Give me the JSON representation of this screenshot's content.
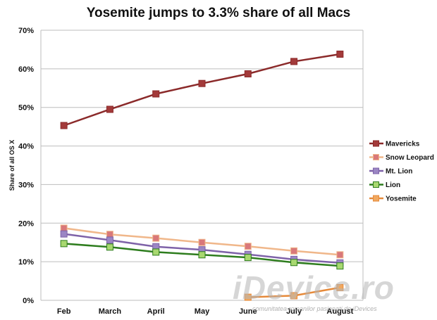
{
  "chart_data": {
    "type": "line",
    "title": "Yosemite jumps to 3.3% share of all Macs",
    "ylabel": "Share of all OS X",
    "xlabel": "",
    "categories": [
      "Feb",
      "March",
      "April",
      "May",
      "June",
      "July",
      "August"
    ],
    "y_ticks": [
      "0%",
      "10%",
      "20%",
      "30%",
      "40%",
      "50%",
      "60%",
      "70%"
    ],
    "ylim": [
      0,
      70
    ],
    "grid": true,
    "legend_position": "right",
    "series": [
      {
        "name": "Mavericks",
        "color": "#8b2a2a",
        "marker_color": "#a33a3a",
        "values": [
          45.3,
          49.5,
          53.5,
          56.2,
          58.7,
          61.9,
          63.8
        ]
      },
      {
        "name": "Snow Leopard",
        "color": "#f0b78a",
        "marker_color": "#d9787a",
        "values": [
          18.7,
          17.1,
          16.1,
          15.0,
          14.0,
          12.8,
          11.8
        ]
      },
      {
        "name": "Mt. Lion",
        "color": "#7e62a8",
        "marker_color": "#9b86c4",
        "values": [
          17.2,
          15.6,
          13.9,
          13.1,
          11.9,
          10.6,
          9.7
        ]
      },
      {
        "name": "Lion",
        "color": "#2e7d1e",
        "marker_color": "#a8d870",
        "values": [
          14.7,
          13.8,
          12.5,
          11.8,
          11.1,
          9.8,
          8.9
        ]
      },
      {
        "name": "Yosemite",
        "color": "#e68a3a",
        "marker_color": "#f0a860",
        "values": [
          null,
          null,
          null,
          null,
          0.8,
          1.2,
          3.3
        ]
      }
    ]
  },
  "watermark": {
    "brand": "iDevice.ro",
    "tagline": "comunitatea romanilor pasionati de iDevices"
  }
}
